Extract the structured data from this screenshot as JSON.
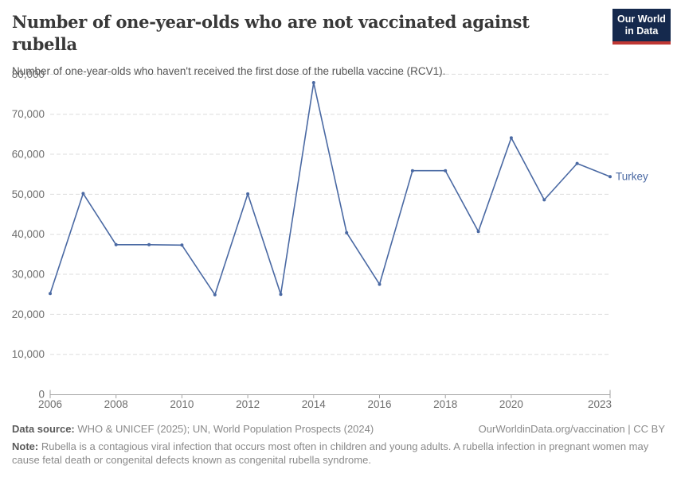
{
  "header": {
    "title": "Number of one-year-olds who are not vaccinated against rubella",
    "subtitle": "Number of one-year-olds who haven't received the first dose of the rubella vaccine (RCV1).",
    "logo_line1": "Our World",
    "logo_line2": "in Data"
  },
  "chart_data": {
    "type": "line",
    "title": "Number of one-year-olds who are not vaccinated against rubella",
    "entity_label": "Turkey",
    "x": [
      2006,
      2007,
      2008,
      2009,
      2010,
      2011,
      2012,
      2013,
      2014,
      2015,
      2016,
      2017,
      2018,
      2019,
      2020,
      2021,
      2022,
      2023
    ],
    "series": [
      {
        "name": "Turkey",
        "color": "#4a69a3",
        "values": [
          25200,
          50200,
          37400,
          37400,
          37300,
          24900,
          50100,
          25000,
          77900,
          40400,
          27500,
          55900,
          55900,
          40700,
          64100,
          48600,
          57700,
          54400
        ]
      }
    ],
    "x_ticks": [
      2006,
      2008,
      2010,
      2012,
      2014,
      2016,
      2018,
      2020,
      2023
    ],
    "y_ticks": [
      0,
      10000,
      20000,
      30000,
      40000,
      50000,
      60000,
      70000,
      80000
    ],
    "xlim": [
      2006,
      2023
    ],
    "ylim": [
      0,
      80000
    ],
    "grid": "horizontal-dashed",
    "legend_position": "end-of-line-label"
  },
  "footer": {
    "datasource_label": "Data source:",
    "datasource_value": " WHO & UNICEF (2025); UN, World Population Prospects (2024)",
    "license": "OurWorldinData.org/vaccination | CC BY",
    "note_label": "Note:",
    "note_value": " Rubella is a contagious viral infection that occurs most often in children and young adults. A rubella infection in pregnant women may cause fetal death or congenital defects known as congenital rubella syndrome."
  },
  "colors": {
    "line": "#4a69a3",
    "gridline": "#dedede",
    "axis": "#a3a3a3",
    "tick_label": "#6e6e6e",
    "title": "#383838",
    "subtitle": "#555555",
    "footer_text": "#8a8a8a",
    "logo_background": "#15294d",
    "logo_accent": "#bf3734"
  }
}
